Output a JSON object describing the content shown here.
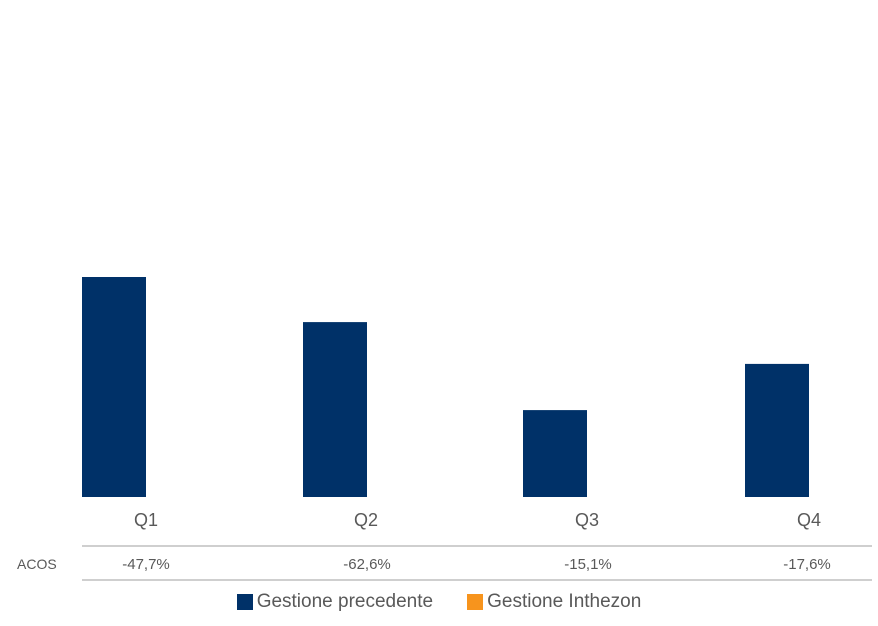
{
  "chart_data": {
    "type": "bar",
    "categories": [
      "Q1",
      "Q2",
      "Q3",
      "Q4"
    ],
    "series": [
      {
        "name": "Gestione precedente",
        "color": "#003168",
        "values": [
          100,
          79.5,
          39.5,
          60.5
        ]
      },
      {
        "name": "Gestione Inthezon",
        "color": "#F7941D",
        "values": [
          0,
          0,
          0,
          0
        ]
      }
    ],
    "ylim": [
      0,
      200
    ],
    "table": {
      "row_label": "ACOS",
      "values": [
        "-47,7%",
        "-62,6%",
        "-15,1%",
        "-17,6%"
      ]
    },
    "legend_position": "bottom"
  }
}
